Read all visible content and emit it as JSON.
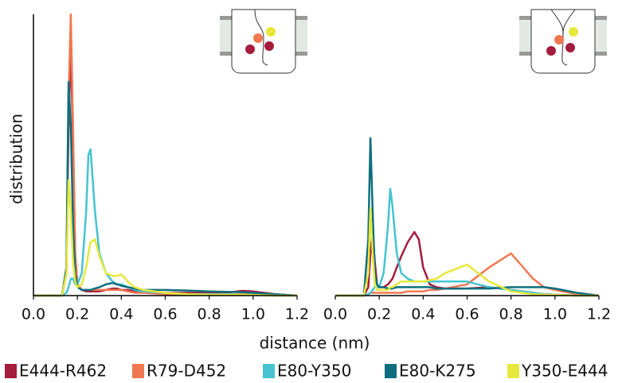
{
  "chart_data": [
    {
      "type": "line",
      "xlabel": "distance (nm)",
      "ylabel": "distribution",
      "left_spine": true,
      "xlim": [
        0,
        1.2
      ],
      "ylim": [
        0,
        100
      ],
      "xticks": [
        {
          "value": 0,
          "label": "0.0"
        },
        0.2,
        0.4,
        0.6,
        0.8,
        {
          "value": 1,
          "label": "1.0"
        },
        1.2
      ],
      "x": [
        0,
        0.1,
        0.13,
        0.15,
        0.16,
        0.17,
        0.18,
        0.19,
        0.2,
        0.22,
        0.24,
        0.25,
        0.26,
        0.28,
        0.3,
        0.33,
        0.36,
        0.38,
        0.4,
        0.43,
        0.46,
        0.5,
        0.6,
        0.7,
        0.8,
        0.9,
        0.95,
        1.0,
        1.1,
        1.2
      ],
      "series": [
        {
          "name": "E444-R462",
          "color": "#a51c3d",
          "values": [
            0,
            0,
            0,
            8,
            60,
            89,
            55,
            15,
            4,
            2,
            1.5,
            1.5,
            1.5,
            1.5,
            1.5,
            2,
            2.5,
            2.5,
            2,
            2,
            1.5,
            1.5,
            1,
            1,
            1,
            1.2,
            1.7,
            1.5,
            0.5,
            0
          ]
        },
        {
          "name": "R79-D452",
          "color": "#f07850",
          "values": [
            0,
            0,
            0,
            10,
            70,
            100,
            60,
            15,
            4,
            2,
            2,
            2,
            2,
            2,
            2,
            2,
            2,
            2,
            2,
            1.5,
            1,
            1,
            0.5,
            0.5,
            0.5,
            0.5,
            0.5,
            0.5,
            0.3,
            0
          ]
        },
        {
          "name": "E80-Y350",
          "color": "#45c3d0",
          "values": [
            0,
            0,
            0,
            1,
            3,
            6,
            6,
            4,
            4,
            8,
            30,
            50,
            52,
            30,
            15,
            8,
            5,
            4,
            4,
            3,
            2,
            1.5,
            1,
            0.5,
            0.5,
            0.5,
            0.3,
            0.3,
            0,
            0
          ]
        },
        {
          "name": "E80-K275",
          "color": "#0e6e7e",
          "values": [
            0,
            0,
            0,
            10,
            76,
            60,
            25,
            8,
            3,
            2,
            2,
            2,
            2,
            2.5,
            3,
            4,
            4.5,
            4,
            3.5,
            3,
            2.5,
            2,
            2,
            1.8,
            1.5,
            1.3,
            1.2,
            1,
            0.5,
            0
          ]
        },
        {
          "name": "Y350-E444",
          "color": "#e6e83c",
          "values": [
            0,
            0,
            0,
            8,
            41,
            30,
            12,
            5,
            3,
            4,
            10,
            15,
            19,
            20,
            14,
            8,
            7,
            7,
            7.5,
            5,
            3,
            2,
            1,
            0.5,
            0.3,
            0.3,
            0.3,
            0.2,
            0,
            0
          ]
        }
      ]
    },
    {
      "type": "line",
      "left_spine": false,
      "xlim": [
        0,
        1.2
      ],
      "ylim": [
        0,
        100
      ],
      "xticks": [
        {
          "value": 0,
          "label": "0.0"
        },
        0.2,
        0.4,
        0.6,
        0.8,
        {
          "value": 1,
          "label": "1.0"
        },
        1.2
      ],
      "x": [
        0,
        0.1,
        0.13,
        0.15,
        0.16,
        0.17,
        0.18,
        0.19,
        0.2,
        0.22,
        0.24,
        0.25,
        0.26,
        0.28,
        0.3,
        0.33,
        0.36,
        0.38,
        0.4,
        0.43,
        0.46,
        0.5,
        0.6,
        0.7,
        0.8,
        0.9,
        0.95,
        1.0,
        1.1,
        1.2
      ],
      "series": [
        {
          "color": "#a51c3d",
          "values": [
            0,
            0,
            0,
            3,
            15,
            22.6,
            12,
            4,
            3,
            3,
            4,
            5,
            6,
            10,
            14,
            19,
            22.6,
            20,
            10,
            4,
            3,
            2.5,
            2.5,
            3,
            2,
            1,
            0.5,
            0.3,
            0,
            0
          ]
        },
        {
          "color": "#f07850",
          "values": [
            0,
            0,
            0,
            0.5,
            1,
            1,
            1,
            1,
            1,
            1,
            1,
            1,
            1,
            1,
            1,
            1.5,
            1.5,
            1.5,
            1.5,
            2,
            2,
            2.5,
            4,
            10,
            15,
            6,
            3,
            2,
            0.5,
            0
          ]
        },
        {
          "color": "#45c3d0",
          "values": [
            0,
            0,
            0,
            0.5,
            1,
            2,
            3,
            3,
            3,
            8,
            25,
            38,
            32,
            15,
            8,
            6,
            5,
            5,
            5,
            5,
            5,
            5,
            5,
            3,
            2,
            1,
            0.5,
            0.3,
            0,
            0
          ]
        },
        {
          "color": "#0e6e7e",
          "values": [
            0,
            0,
            0,
            20,
            56,
            30,
            8,
            4,
            3,
            3,
            2.5,
            2.5,
            2.5,
            3,
            3,
            3,
            3,
            3,
            3,
            3,
            2.5,
            2.5,
            2.5,
            2.5,
            3,
            3,
            3,
            2.5,
            1,
            0
          ]
        },
        {
          "color": "#e6e83c",
          "values": [
            0,
            0,
            0,
            8,
            31,
            15,
            4,
            2,
            2,
            2,
            2,
            3,
            3,
            4,
            5,
            5,
            5,
            5,
            5,
            5.5,
            6,
            8,
            11,
            5,
            1.5,
            0.5,
            0.3,
            0.2,
            0,
            0
          ]
        }
      ]
    }
  ]
}
